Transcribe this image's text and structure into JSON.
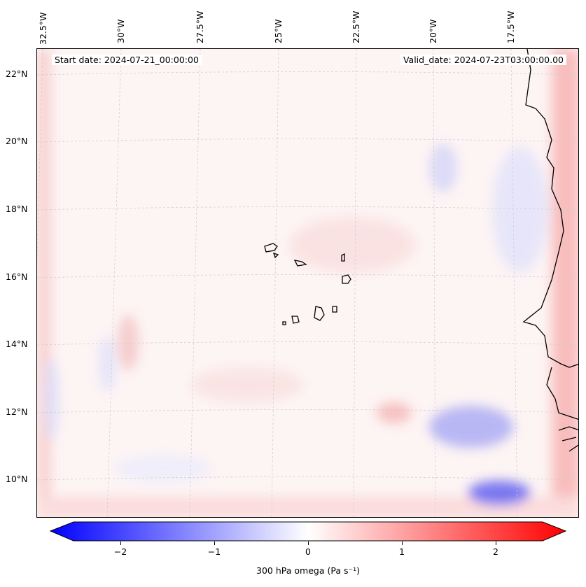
{
  "header": {
    "start_date": "Start date: 2024-07-21_00:00:00",
    "valid_date": "Valid_date: 2024-07-23T03:00:00.00"
  },
  "lon_labels": [
    "32.5°W",
    "30°W",
    "27.5°W",
    "25°W",
    "22.5°W",
    "20°W",
    "17.5°W"
  ],
  "lat_labels": [
    "22°N",
    "20°N",
    "18°N",
    "16°N",
    "14°N",
    "12°N",
    "10°N"
  ],
  "colorbar": {
    "label": "300 hPa omega (Pa s⁻¹)",
    "ticks": [
      "−2",
      "−1",
      "0",
      "1",
      "2"
    ],
    "min": -2.5,
    "max": 2.5,
    "extend": "both",
    "cmap": "bwr",
    "colors": {
      "low": "#0000ff",
      "mid": "#ffffff",
      "high": "#ff0000"
    }
  },
  "map": {
    "field": "300 hPa omega",
    "coastline_color": "#000000"
  }
}
